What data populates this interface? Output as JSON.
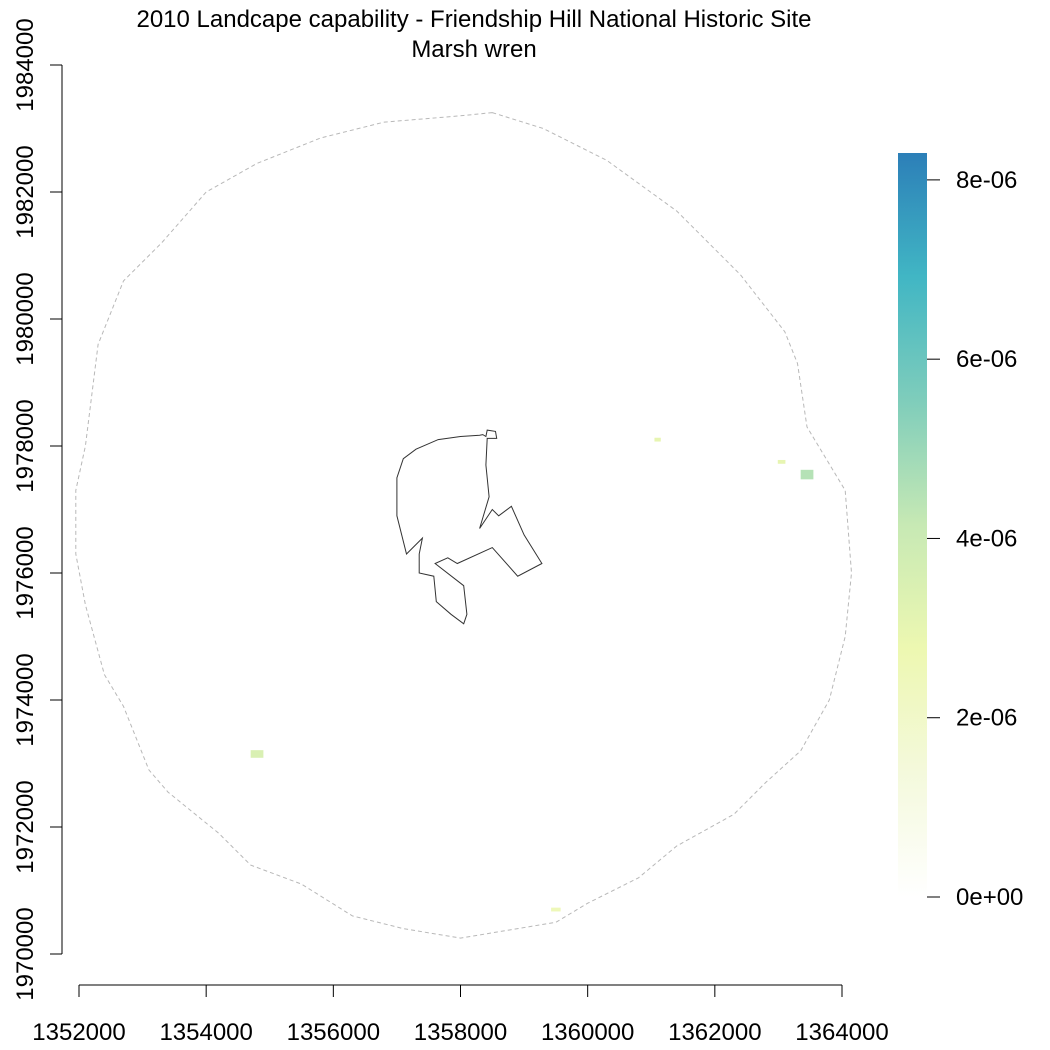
{
  "title": {
    "line1": "2010 Landcape capability - Friendship Hill National Historic Site",
    "line2": "Marsh wren"
  },
  "chart_data": {
    "type": "raster-map",
    "x_axis": {
      "range": [
        1352000,
        1364000
      ],
      "ticks": [
        1352000,
        1354000,
        1356000,
        1358000,
        1360000,
        1362000,
        1364000
      ],
      "tick_labels": [
        "1352000",
        "1354000",
        "1356000",
        "1358000",
        "1360000",
        "1362000",
        "1364000"
      ]
    },
    "y_axis": {
      "range": [
        1970000,
        1984000
      ],
      "ticks": [
        1970000,
        1972000,
        1974000,
        1976000,
        1978000,
        1980000,
        1982000,
        1984000
      ],
      "tick_labels": [
        "1970000",
        "1972000",
        "1974000",
        "1976000",
        "1978000",
        "1980000",
        "1982000",
        "1984000"
      ]
    },
    "legend": {
      "placement": "right",
      "min": 0,
      "max": 8.3e-06,
      "ticks": [
        0,
        2e-06,
        4e-06,
        6e-06,
        8e-06
      ],
      "tick_labels": [
        "0e+00",
        "2e-06",
        "4e-06",
        "6e-06",
        "8e-06"
      ],
      "colors": [
        "#ffffff",
        "#f4f9dc",
        "#edf8b1",
        "#c7e9b4",
        "#7fcdbb",
        "#41b6c4",
        "#2c7fb8"
      ]
    },
    "buffer_outline": [
      [
        1358500,
        1983250
      ],
      [
        1359300,
        1983000
      ],
      [
        1360300,
        1982500
      ],
      [
        1361400,
        1981700
      ],
      [
        1362400,
        1980700
      ],
      [
        1363100,
        1979800
      ],
      [
        1363300,
        1979300
      ],
      [
        1363450,
        1978300
      ],
      [
        1364050,
        1977300
      ],
      [
        1364150,
        1976000
      ],
      [
        1364050,
        1975000
      ],
      [
        1363800,
        1974000
      ],
      [
        1363350,
        1973200
      ],
      [
        1362800,
        1972700
      ],
      [
        1362300,
        1972200
      ],
      [
        1361400,
        1971700
      ],
      [
        1360800,
        1971200
      ],
      [
        1360000,
        1970800
      ],
      [
        1359500,
        1970500
      ],
      [
        1358900,
        1970400
      ],
      [
        1358000,
        1970250
      ],
      [
        1357100,
        1970400
      ],
      [
        1356300,
        1970600
      ],
      [
        1355500,
        1971100
      ],
      [
        1354700,
        1971400
      ],
      [
        1354200,
        1971900
      ],
      [
        1353400,
        1972550
      ],
      [
        1353100,
        1972900
      ],
      [
        1352700,
        1973900
      ],
      [
        1352400,
        1974400
      ],
      [
        1352100,
        1975500
      ],
      [
        1351950,
        1976300
      ],
      [
        1351950,
        1977300
      ],
      [
        1352100,
        1978000
      ],
      [
        1352300,
        1979600
      ],
      [
        1352700,
        1980600
      ],
      [
        1353300,
        1981200
      ],
      [
        1354000,
        1982000
      ],
      [
        1354800,
        1982450
      ],
      [
        1355800,
        1982850
      ],
      [
        1356800,
        1983100
      ],
      [
        1357400,
        1983150
      ],
      [
        1358000,
        1983200
      ],
      [
        1358500,
        1983250
      ]
    ],
    "park_boundary": [
      [
        1357400,
        1976550
      ],
      [
        1357150,
        1976300
      ],
      [
        1357000,
        1976900
      ],
      [
        1357000,
        1977500
      ],
      [
        1357100,
        1977800
      ],
      [
        1357300,
        1977950
      ],
      [
        1357650,
        1978100
      ],
      [
        1358000,
        1978150
      ],
      [
        1358300,
        1978170
      ],
      [
        1358350,
        1978180
      ],
      [
        1358400,
        1978150
      ],
      [
        1358420,
        1978250
      ],
      [
        1358550,
        1978230
      ],
      [
        1358570,
        1978120
      ],
      [
        1358420,
        1978120
      ],
      [
        1358400,
        1977700
      ],
      [
        1358450,
        1977200
      ],
      [
        1358300,
        1976700
      ],
      [
        1358500,
        1977000
      ],
      [
        1358600,
        1976900
      ],
      [
        1358800,
        1977050
      ],
      [
        1359000,
        1976600
      ],
      [
        1359280,
        1976150
      ],
      [
        1358900,
        1975950
      ],
      [
        1358500,
        1976400
      ],
      [
        1357950,
        1976150
      ],
      [
        1357800,
        1976240
      ],
      [
        1357600,
        1976150
      ],
      [
        1358050,
        1975800
      ],
      [
        1358100,
        1975350
      ],
      [
        1358050,
        1975200
      ],
      [
        1357850,
        1975350
      ],
      [
        1357620,
        1975550
      ],
      [
        1357580,
        1975950
      ],
      [
        1357350,
        1976000
      ],
      [
        1357350,
        1976300
      ],
      [
        1357400,
        1976550
      ]
    ],
    "raster_patches": [
      {
        "x": 1363450,
        "y": 1977550,
        "w": 200,
        "h": 150,
        "value": 4.5e-06
      },
      {
        "x": 1363050,
        "y": 1977750,
        "w": 120,
        "h": 60,
        "value": 3e-06
      },
      {
        "x": 1361100,
        "y": 1978100,
        "w": 100,
        "h": 60,
        "value": 3e-06
      },
      {
        "x": 1354800,
        "y": 1973150,
        "w": 200,
        "h": 120,
        "value": 3.5e-06
      },
      {
        "x": 1359500,
        "y": 1970700,
        "w": 150,
        "h": 60,
        "value": 2.5e-06
      }
    ]
  }
}
